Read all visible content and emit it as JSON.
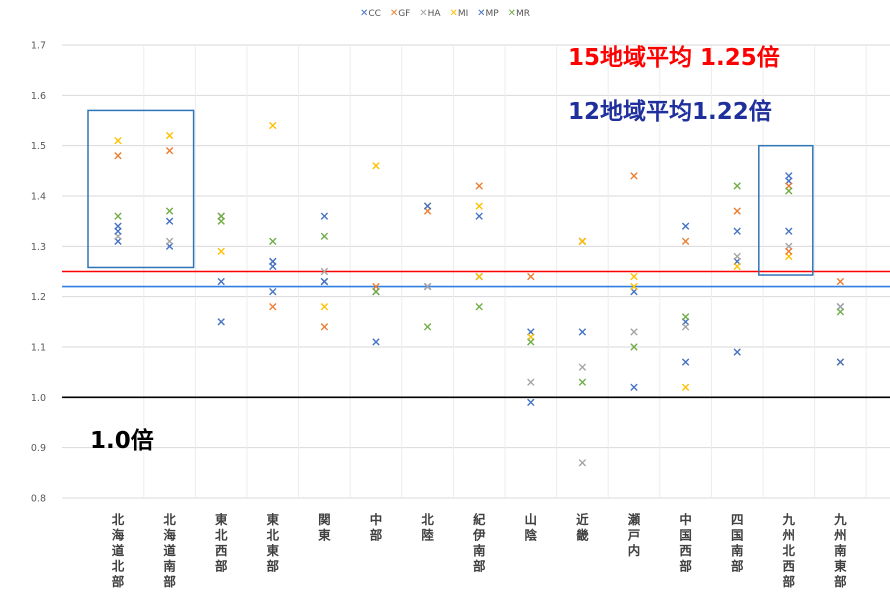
{
  "chart_data": {
    "type": "scatter",
    "title": "",
    "xlabel": "",
    "ylabel": "",
    "ylim": [
      0.8,
      1.7
    ],
    "yticks": [
      "0.8",
      "0.9",
      "1.0",
      "1.1",
      "1.2",
      "1.3",
      "1.4",
      "1.5",
      "1.6",
      "1.7"
    ],
    "grid": "horizontal",
    "legend_position": "top-center",
    "categories": [
      "北海道北部",
      "北海道南部",
      "東北西部",
      "東北東部",
      "関東",
      "中部",
      "北陸",
      "紀伊南部",
      "山陰",
      "近畿",
      "瀬戸内",
      "中国西部",
      "四国南部",
      "九州北西部",
      "九州南東部"
    ],
    "series": [
      {
        "name": "CC",
        "color": "#4472C4",
        "values": [
          1.31,
          1.3,
          1.23,
          1.21,
          1.23,
          1.21,
          1.22,
          1.24,
          1.13,
          1.31,
          1.21,
          1.15,
          1.27,
          1.43,
          1.18
        ]
      },
      {
        "name": "GF",
        "color": "#ED7D31",
        "values": [
          1.48,
          1.49,
          1.36,
          1.18,
          1.14,
          1.22,
          1.37,
          1.42,
          1.24,
          1.31,
          1.44,
          1.31,
          1.37,
          1.42,
          1.23
        ]
      },
      {
        "name": "HA",
        "color": "#A5A5A5",
        "values": [
          1.32,
          1.31,
          1.36,
          1.27,
          1.25,
          1.21,
          1.22,
          1.24,
          1.03,
          1.06,
          1.13,
          1.14,
          1.28,
          1.3,
          1.18
        ]
      },
      {
        "name": "MI",
        "color": "#FFC000",
        "values": [
          1.51,
          1.52,
          1.29,
          1.54,
          1.18,
          1.46,
          1.38,
          1.38,
          1.12,
          1.31,
          1.24,
          1.02,
          1.26,
          1.28,
          1.07
        ]
      },
      {
        "name": "MP",
        "color": "#4472C4",
        "values": [
          1.34,
          1.35,
          1.15,
          1.26,
          1.36,
          1.11,
          1.38,
          1.36,
          0.99,
          1.13,
          1.02,
          1.34,
          1.09,
          1.33,
          1.07
        ]
      },
      {
        "name": "MR",
        "color": "#70AD47",
        "values": [
          1.36,
          1.37,
          1.36,
          1.31,
          1.32,
          1.21,
          1.14,
          1.18,
          1.11,
          1.03,
          1.1,
          1.16,
          1.42,
          1.41,
          1.17
        ]
      }
    ],
    "extra_points": [
      {
        "category": "北海道北部",
        "series": "MP",
        "value": 1.33
      },
      {
        "category": "東北西部",
        "series": "MR",
        "value": 1.35
      },
      {
        "category": "東北東部",
        "series": "MP",
        "value": 1.27
      },
      {
        "category": "関東",
        "series": "MP",
        "value": 1.23
      },
      {
        "category": "紀伊南部",
        "series": "MI",
        "value": 1.24
      },
      {
        "category": "近畿",
        "series": "HA",
        "value": 0.87
      },
      {
        "category": "瀬戸内",
        "series": "MI",
        "value": 1.22
      },
      {
        "category": "中国西部",
        "series": "MP",
        "value": 1.07
      },
      {
        "category": "四国南部",
        "series": "MP",
        "value": 1.33
      },
      {
        "category": "九州北西部",
        "series": "MP",
        "value": 1.44
      },
      {
        "category": "九州北西部",
        "series": "GF",
        "value": 1.29
      }
    ],
    "reference_lines": [
      {
        "value": 1.0,
        "color": "#000000"
      },
      {
        "value": 1.22,
        "color": "#2F7FE0"
      },
      {
        "value": 1.25,
        "color": "#FF0000"
      }
    ],
    "highlight_groups": [
      {
        "categories": [
          "北海道北部",
          "北海道南部"
        ],
        "color": "#2E75B6"
      },
      {
        "categories": [
          "九州北西部"
        ],
        "color": "#2E75B6"
      }
    ],
    "annotations": [
      {
        "text": "15地域平均 1.25倍",
        "color": "#FF0000"
      },
      {
        "text": "12地域平均1.22倍",
        "color": "#1F2F9C"
      },
      {
        "text": "1.0倍",
        "color": "#000000"
      }
    ]
  }
}
